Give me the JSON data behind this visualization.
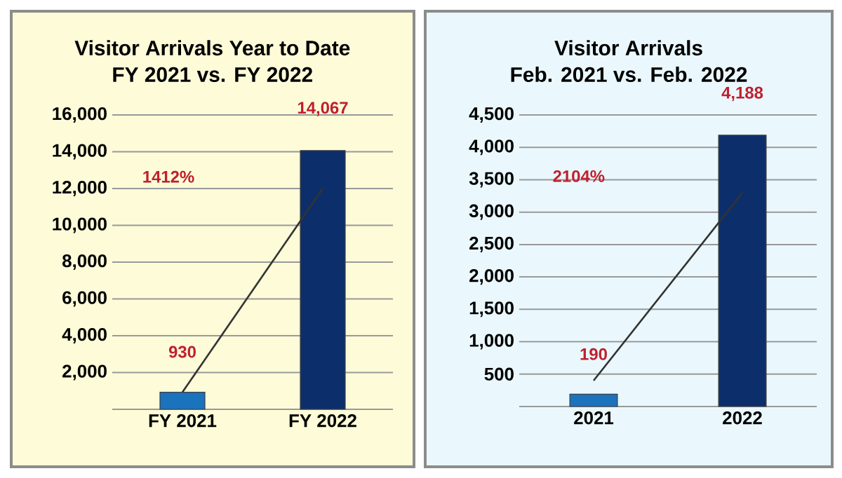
{
  "chart_data": [
    {
      "type": "bar",
      "title": "Visitor Arrivals Year to Date",
      "subtitle": "FY 2021 vs. FY 2022",
      "categories": [
        "FY 2021",
        "FY 2022"
      ],
      "annotations": [
        "1412%"
      ],
      "ylim": [
        0,
        16000
      ],
      "yticks": [
        {
          "value": 0,
          "label": null
        },
        {
          "value": 2000,
          "label": "2,000"
        },
        {
          "value": 4000,
          "label": "4,000"
        },
        {
          "value": 6000,
          "label": "6,000"
        },
        {
          "value": 8000,
          "label": "8,000"
        },
        {
          "value": 10000,
          "label": "10,000"
        },
        {
          "value": 12000,
          "label": "12,000"
        },
        {
          "value": 14000,
          "label": "14,000"
        },
        {
          "value": 16000,
          "label": "16,000"
        }
      ],
      "grid": "y",
      "series": [
        {
          "values": [
            930,
            14067
          ],
          "colors": [
            "#1b72bd",
            "#0c2f6b"
          ],
          "value_labels": [
            "930",
            "14,067"
          ]
        },
        {
          "type": "line",
          "values": [
            930,
            12000
          ],
          "color": "#333333",
          "marker": "none"
        }
      ]
    },
    {
      "type": "bar",
      "title": "Visitor Arrivals",
      "subtitle": "Feb. 2021 vs. Feb. 2022",
      "categories": [
        "2021",
        "2022"
      ],
      "annotations": [
        "2104%"
      ],
      "ylim": [
        0,
        4500
      ],
      "yticks": [
        {
          "value": 0,
          "label": null
        },
        {
          "value": 500,
          "label": "500"
        },
        {
          "value": 1000,
          "label": "1,000"
        },
        {
          "value": 1500,
          "label": "1,500"
        },
        {
          "value": 2000,
          "label": "2,000"
        },
        {
          "value": 2500,
          "label": "2,500"
        },
        {
          "value": 3000,
          "label": "3,000"
        },
        {
          "value": 3500,
          "label": "3,500"
        },
        {
          "value": 4000,
          "label": "4,000"
        },
        {
          "value": 4500,
          "label": "4,500"
        }
      ],
      "grid": "y",
      "series": [
        {
          "values": [
            190,
            4188
          ],
          "colors": [
            "#1b72bd",
            "#0c2f6b"
          ],
          "value_labels": [
            "190",
            "4,188"
          ]
        },
        {
          "type": "line",
          "values": [
            400,
            3300
          ],
          "color": "#333333",
          "marker": "none"
        }
      ]
    }
  ]
}
